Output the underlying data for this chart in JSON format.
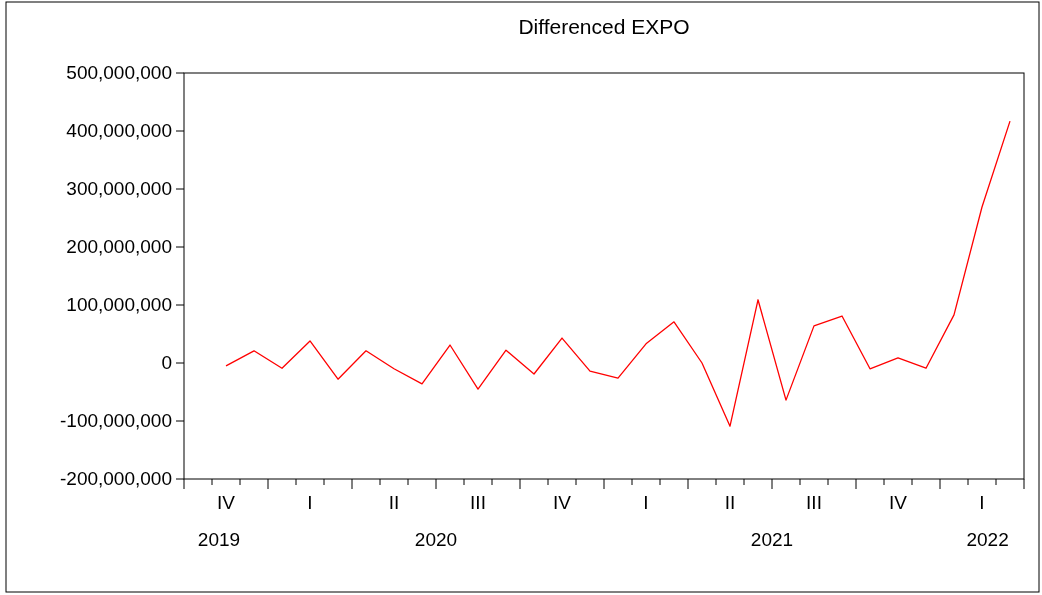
{
  "chart_data": {
    "type": "line",
    "title": "Differenced EXPO",
    "categories": [
      null,
      "IV",
      null,
      null,
      "I",
      null,
      null,
      "II",
      null,
      null,
      "III",
      null,
      null,
      "IV",
      null,
      null,
      "I",
      null,
      null,
      "II",
      null,
      null,
      "III",
      null,
      null,
      "IV",
      null,
      null,
      "I",
      null
    ],
    "series": [
      {
        "color": "#ff0000",
        "values": [
          null,
          -5000000,
          21000000,
          -9000000,
          38000000,
          -28000000,
          21000000,
          -10000000,
          -36000000,
          31000000,
          -45000000,
          22000000,
          -19000000,
          43000000,
          -14000000,
          -26000000,
          33000000,
          71000000,
          0,
          -109000000,
          109000000,
          -64000000,
          64000000,
          81000000,
          -10000000,
          9000000,
          -9000000,
          83000000,
          269000000,
          417000000
        ]
      }
    ],
    "ylim": [
      -200000000,
      500000000
    ],
    "yticks": [
      {
        "value": -200000000,
        "label": "-200,000,000"
      },
      {
        "value": -100000000,
        "label": "-100,000,000"
      },
      {
        "value": 0,
        "label": "0"
      },
      {
        "value": 100000000,
        "label": "100,000,000"
      },
      {
        "value": 200000000,
        "label": "200,000,000"
      },
      {
        "value": 300000000,
        "label": "300,000,000"
      },
      {
        "value": 400000000,
        "label": "400,000,000"
      },
      {
        "value": 500000000,
        "label": "500,000,000"
      }
    ],
    "annotations": [
      "2019",
      "2020",
      "2021",
      "2022"
    ],
    "grid": false,
    "marker": "none",
    "line_style": "solid"
  }
}
